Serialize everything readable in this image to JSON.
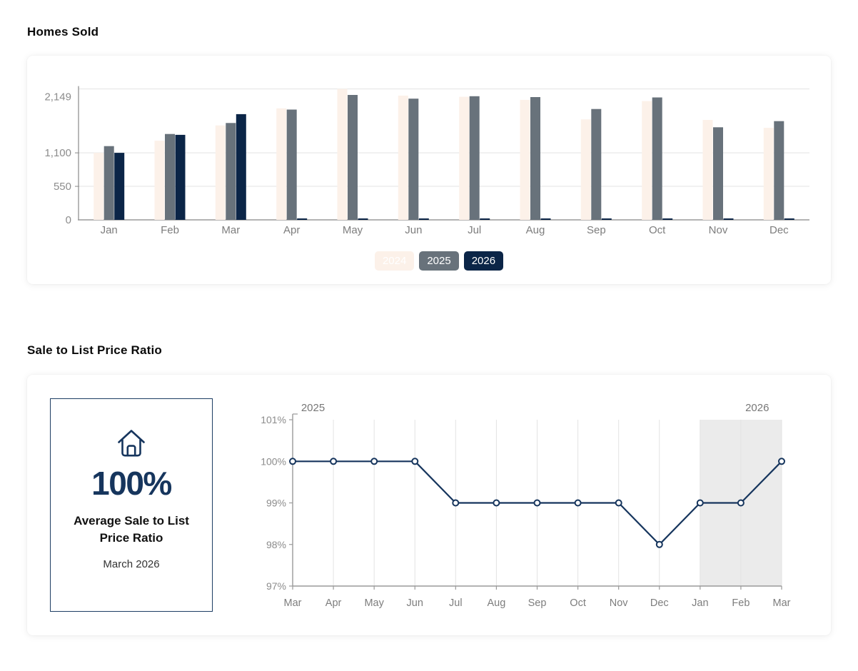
{
  "titles": {
    "homes_sold": "Homes Sold",
    "sale_to_list": "Sale to List Price Ratio"
  },
  "stat_card": {
    "icon": "house-icon",
    "value": "100%",
    "label": "Average Sale to List Price Ratio",
    "sublabel": "March 2026"
  },
  "colors": {
    "cream": "#fcf1e9",
    "slate": "#68727b",
    "navy": "#0b2547",
    "line_navy": "#16355d",
    "axis_line": "#9a9a9a",
    "grid_line": "#e3e3e3",
    "tick_text": "#8c8c8c",
    "month_text": "#7d7d7d",
    "year_text": "#777777",
    "highlight_band": "#ebebeb",
    "card_border": "#1d3d63"
  },
  "chart_data": [
    {
      "type": "bar",
      "title": "Homes Sold",
      "categories": [
        "Jan",
        "Feb",
        "Mar",
        "Apr",
        "May",
        "Jun",
        "Jul",
        "Aug",
        "Sep",
        "Oct",
        "Nov",
        "Dec"
      ],
      "series": [
        {
          "name": "2024",
          "color": "#fcf1e9",
          "values": [
            1100,
            1300,
            1550,
            1830,
            2149,
            2040,
            2020,
            1970,
            1650,
            1950,
            1640,
            1510
          ]
        },
        {
          "name": "2025",
          "color": "#68727b",
          "values": [
            1210,
            1410,
            1590,
            1810,
            2050,
            1990,
            2030,
            2015,
            1820,
            2010,
            1520,
            1620
          ]
        },
        {
          "name": "2026",
          "color": "#0b2547",
          "values": [
            1100,
            1395,
            1735,
            0,
            0,
            0,
            0,
            0,
            0,
            0,
            0,
            0
          ]
        }
      ],
      "ylim": [
        0,
        2149
      ],
      "yticks": [
        {
          "value": 0,
          "label": "0"
        },
        {
          "value": 550,
          "label": "550"
        },
        {
          "value": 1100,
          "label": "1,100"
        },
        {
          "value": 2149,
          "label": "2,149"
        }
      ],
      "grid": true,
      "legend_position": "bottom",
      "legend_labels": [
        "2024",
        "2025",
        "2026"
      ]
    },
    {
      "type": "line",
      "title": "Sale to List Price Ratio",
      "x": [
        "Mar",
        "Apr",
        "May",
        "Jun",
        "Jul",
        "Aug",
        "Sep",
        "Oct",
        "Nov",
        "Dec",
        "Jan",
        "Feb",
        "Mar"
      ],
      "values": [
        100,
        100,
        100,
        100,
        99,
        99,
        99,
        99,
        99,
        98,
        99,
        99,
        100
      ],
      "unit": "%",
      "ylim": [
        97,
        101
      ],
      "yticks": [
        {
          "value": 101,
          "label": "101%"
        },
        {
          "value": 100,
          "label": "100%"
        },
        {
          "value": 99,
          "label": "99%"
        },
        {
          "value": 98,
          "label": "98%"
        },
        {
          "value": 97,
          "label": "97%"
        }
      ],
      "grid": true,
      "year_labels": [
        {
          "label": "2025",
          "anchor_index": 0.5
        },
        {
          "label": "2026",
          "anchor_index": 11.4
        }
      ],
      "highlight_range": {
        "from_index": 10,
        "to_index": 12,
        "meaning": "2026"
      }
    }
  ]
}
